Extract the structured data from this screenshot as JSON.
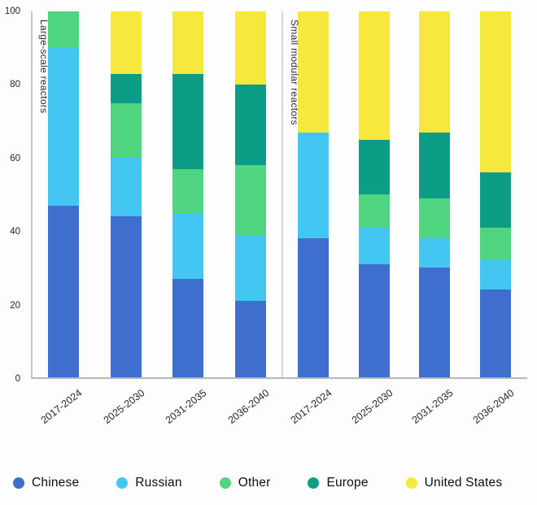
{
  "chart_data": {
    "type": "bar",
    "stacked": true,
    "ylim": [
      0,
      100
    ],
    "yticks": [
      0,
      20,
      40,
      60,
      80,
      100
    ],
    "grid": false,
    "legend_position": "bottom",
    "categories": [
      "2017-2024",
      "2025-2030",
      "2031-2035",
      "2036-2040"
    ],
    "groups": [
      {
        "label": "Large-scale reactors",
        "series": [
          {
            "name": "Chinese",
            "values": [
              47,
              44,
              27,
              21
            ]
          },
          {
            "name": "Russian",
            "values": [
              43,
              16,
              18,
              18
            ]
          },
          {
            "name": "Other",
            "values": [
              10,
              15,
              12,
              19
            ]
          },
          {
            "name": "Europe",
            "values": [
              0,
              8,
              26,
              22
            ]
          },
          {
            "name": "United States",
            "values": [
              0,
              17,
              17,
              20
            ]
          }
        ]
      },
      {
        "label": "Small modular reactors",
        "series": [
          {
            "name": "Chinese",
            "values": [
              38,
              31,
              30,
              24
            ]
          },
          {
            "name": "Russian",
            "values": [
              29,
              10,
              8,
              8
            ]
          },
          {
            "name": "Other",
            "values": [
              0,
              9,
              11,
              9
            ]
          },
          {
            "name": "Europe",
            "values": [
              0,
              15,
              18,
              15
            ]
          },
          {
            "name": "United States",
            "values": [
              33,
              35,
              33,
              44
            ]
          }
        ]
      }
    ],
    "legend": [
      {
        "label": "Chinese",
        "color": "#3e6fce"
      },
      {
        "label": "Russian",
        "color": "#43c7f2"
      },
      {
        "label": "Other",
        "color": "#4fd57f"
      },
      {
        "label": "Europe",
        "color": "#0d9c86"
      },
      {
        "label": "United States",
        "color": "#f7e83e"
      }
    ]
  }
}
